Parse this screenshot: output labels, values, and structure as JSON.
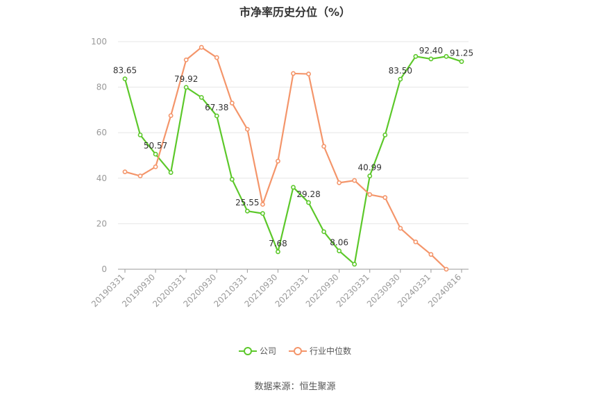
{
  "chart_data": {
    "type": "line",
    "title": "市净率历史分位（%）",
    "xlabel": "",
    "ylabel": "",
    "ylim": [
      0,
      100
    ],
    "yticks": [
      0,
      20,
      40,
      60,
      80,
      100
    ],
    "grid": true,
    "legend_position": "bottom",
    "x": [
      "20190331",
      "20190630",
      "20190930",
      "20191231",
      "20200331",
      "20200630",
      "20200930",
      "20201231",
      "20210331",
      "20210630",
      "20210930",
      "20211231",
      "20220331",
      "20220630",
      "20220930",
      "20221231",
      "20230331",
      "20230630",
      "20230930",
      "20231231",
      "20240331",
      "20240630",
      "20240816"
    ],
    "xtick_labels": [
      "20190331",
      "20190930",
      "20200331",
      "20200930",
      "20210331",
      "20210930",
      "20220331",
      "20220930",
      "20230331",
      "20230930",
      "20240331",
      "20240816"
    ],
    "series": [
      {
        "name": "公司",
        "color": "#5cc82a",
        "values": [
          83.65,
          59,
          50.57,
          42.5,
          79.92,
          75.5,
          67.38,
          39.5,
          25.55,
          24.5,
          7.68,
          36,
          29.28,
          16.5,
          8.06,
          2.2,
          40.99,
          59,
          83.5,
          93.5,
          92.4,
          93.5,
          91.25
        ],
        "labels": [
          "83.65",
          "",
          "50.57",
          "",
          "79.92",
          "",
          "67.38",
          "",
          "25.55",
          "",
          "7.68",
          "",
          "29.28",
          "",
          "8.06",
          "",
          "40.99",
          "",
          "83.50",
          "",
          "92.40",
          "",
          "91.25"
        ]
      },
      {
        "name": "行业中位数",
        "color": "#f4956a",
        "values": [
          42.8,
          41,
          45,
          67.5,
          92,
          97.5,
          93,
          73,
          61.5,
          28.5,
          47.5,
          86,
          85.8,
          54,
          38,
          39,
          32.8,
          31.5,
          18,
          12,
          6.5,
          0,
          null
        ],
        "labels": []
      }
    ]
  },
  "legend": {
    "company": "公司",
    "industry": "行业中位数"
  },
  "source": "数据来源：恒生聚源"
}
